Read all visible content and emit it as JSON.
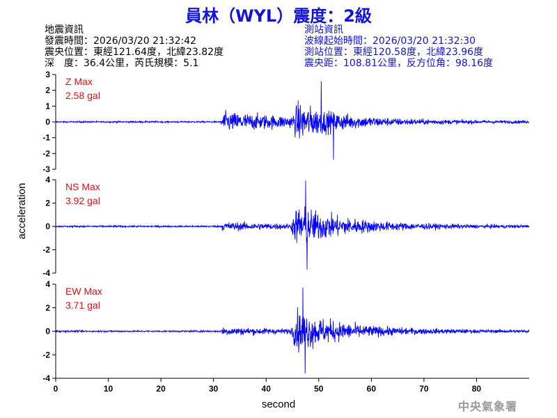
{
  "title": "員林（WYL）震度：2級",
  "quake_info": {
    "heading": "地震資訊",
    "origin_time": "發震時間：2026/03/20 21:32:42",
    "epicenter": "震央位置：東經121.64度，北緯23.82度",
    "depth_magnitude": "深　度：36.4公里，芮氏規模：5.1"
  },
  "station_info": {
    "heading": "測站資訊",
    "wave_start": "波線起始時間：2026/03/20 21:32:30",
    "station_location": "測站位置：東經120.58度，北緯23.96度",
    "distance_azimuth": "震央距：108.81公里，反方位角：98.16度"
  },
  "watermark": "中央氣象署",
  "colors": {
    "trace": "#0000ff",
    "title": "#1212d8",
    "max_label": "#e01010"
  },
  "chart_data": {
    "type": "line",
    "xlabel": "second",
    "ylabel": "acceleration",
    "xlim": [
      0,
      90
    ],
    "xticks": [
      0,
      10,
      20,
      30,
      40,
      50,
      60,
      70,
      80
    ],
    "p_arrival_s": 31.5,
    "s_arrival_s": 46,
    "panels": [
      {
        "name": "Z Max",
        "max_label": "2.58 gal",
        "max": 2.58,
        "min": -2.4,
        "ylim": [
          -3,
          3
        ],
        "yticks": [
          3,
          2,
          1,
          0,
          -1,
          -2,
          -3
        ]
      },
      {
        "name": "NS Max",
        "max_label": "3.92 gal",
        "max": 3.92,
        "min": -3.7,
        "ylim": [
          -4,
          4
        ],
        "yticks": [
          4,
          2,
          0,
          -2,
          -4
        ]
      },
      {
        "name": "EW Max",
        "max_label": "3.71 gal",
        "max": 3.71,
        "min": -3.6,
        "ylim": [
          -4,
          4
        ],
        "yticks": [
          4,
          2,
          0,
          -2,
          -4
        ]
      }
    ]
  }
}
